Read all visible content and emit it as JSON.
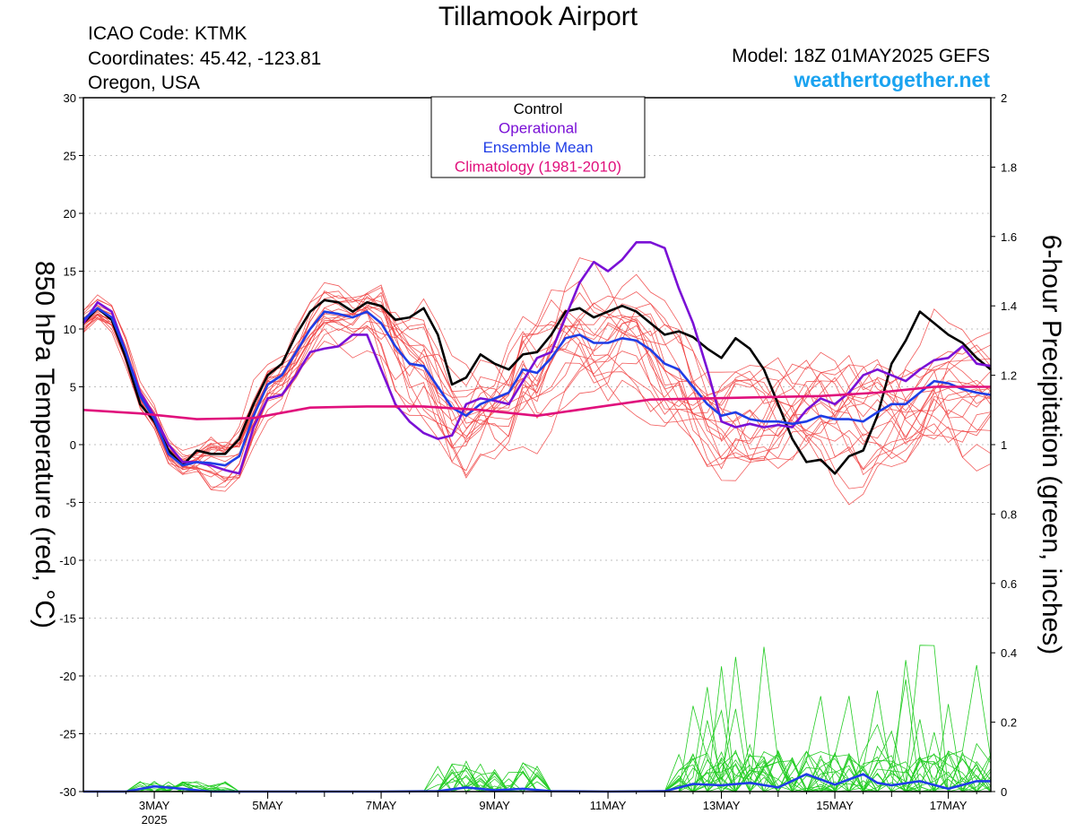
{
  "header": {
    "title": "Tillamook Airport",
    "icao": "ICAO Code: KTMK",
    "coordinates": "Coordinates: 45.42, -123.81",
    "region": "Oregon, USA",
    "model": "Model: 18Z 01MAY2025 GEFS",
    "site": "weathertogether.net"
  },
  "colors": {
    "control": "#000000",
    "operational": "#7a10d6",
    "ensemble_mean": "#1f3de6",
    "climatology": "#e0107c",
    "members_temp": "#f04040",
    "members_precip": "#22cc22",
    "grid": "#bfbfbf"
  },
  "chart_data": {
    "type": "line",
    "left_axis": {
      "label": "850 hPa Temperature (red, °C)",
      "range": [
        -30,
        30
      ],
      "ticks": [
        "30",
        "25",
        "20",
        "15",
        "10",
        "5",
        "0",
        "-5",
        "-10",
        "-15",
        "-20",
        "-25",
        "-30"
      ]
    },
    "right_axis": {
      "label": "6-hour Precipitation (green, inches)",
      "range": [
        0,
        2
      ],
      "ticks": [
        "2",
        "1.8",
        "1.6",
        "1.4",
        "1.2",
        "1",
        "0.8",
        "0.6",
        "0.4",
        "0.2",
        "0"
      ]
    },
    "x_axis": {
      "range_days": [
        1.75,
        17.75
      ],
      "ticks": [
        {
          "day": 3,
          "label": "3MAY",
          "sublabel": "2025"
        },
        {
          "day": 5,
          "label": "5MAY"
        },
        {
          "day": 7,
          "label": "7MAY"
        },
        {
          "day": 9,
          "label": "9MAY"
        },
        {
          "day": 11,
          "label": "11MAY"
        },
        {
          "day": 13,
          "label": "13MAY"
        },
        {
          "day": 15,
          "label": "15MAY"
        },
        {
          "day": 17,
          "label": "17MAY"
        }
      ]
    },
    "legend": {
      "position": "top-center",
      "entries": [
        {
          "label": "Control",
          "color": "#000000"
        },
        {
          "label": "Operational",
          "color": "#7a10d6"
        },
        {
          "label": "Ensemble Mean",
          "color": "#1f3de6"
        },
        {
          "label": "Climatology (1981-2010)",
          "color": "#e0107c"
        }
      ]
    },
    "grid": true,
    "series": [
      {
        "name": "Control",
        "axis": "temp",
        "color": "#000000",
        "width": 2.6,
        "x": [
          1.75,
          2.0,
          2.25,
          2.5,
          2.75,
          3.0,
          3.25,
          3.5,
          3.75,
          4.0,
          4.25,
          4.5,
          4.75,
          5.0,
          5.25,
          5.5,
          5.75,
          6.0,
          6.25,
          6.5,
          6.75,
          7.0,
          7.25,
          7.5,
          7.75,
          8.0,
          8.25,
          8.5,
          8.75,
          9.0,
          9.25,
          9.5,
          9.75,
          10.0,
          10.25,
          10.5,
          10.75,
          11.0,
          11.25,
          11.5,
          11.75,
          12.0,
          12.25,
          12.5,
          12.75,
          13.0,
          13.25,
          13.5,
          13.75,
          14.0,
          14.25,
          14.5,
          14.75,
          15.0,
          15.25,
          15.5,
          15.75,
          16.0,
          16.25,
          16.5,
          16.75,
          17.0,
          17.25,
          17.5,
          17.75
        ],
        "y": [
          10.5,
          11.8,
          10.8,
          7.5,
          3.5,
          2.0,
          -0.5,
          -1.8,
          -0.5,
          -0.8,
          -0.8,
          0.5,
          3.5,
          6.0,
          7.0,
          9.5,
          11.5,
          12.5,
          12.3,
          11.5,
          12.3,
          12.0,
          10.8,
          11.0,
          11.8,
          9.5,
          5.2,
          5.8,
          7.8,
          7.0,
          6.5,
          7.8,
          8.0,
          9.5,
          11.5,
          11.8,
          11.0,
          11.5,
          12.0,
          11.5,
          10.5,
          9.5,
          9.8,
          9.3,
          8.3,
          7.5,
          9.2,
          8.3,
          6.5,
          3.5,
          0.5,
          -1.5,
          -1.3,
          -2.5,
          -1.0,
          -0.5,
          2.5,
          7.0,
          9.0,
          11.5,
          10.5,
          9.5,
          8.8,
          7.5,
          6.5
        ]
      },
      {
        "name": "Operational",
        "axis": "temp",
        "color": "#7a10d6",
        "width": 2.6,
        "x": [
          1.75,
          2.0,
          2.25,
          2.5,
          2.75,
          3.0,
          3.25,
          3.5,
          3.75,
          4.0,
          4.25,
          4.5,
          4.75,
          5.0,
          5.25,
          5.5,
          5.75,
          6.0,
          6.25,
          6.5,
          6.75,
          7.0,
          7.25,
          7.5,
          7.75,
          8.0,
          8.25,
          8.5,
          8.75,
          9.0,
          9.25,
          9.5,
          9.75,
          10.0,
          10.25,
          10.5,
          10.75,
          11.0,
          11.25,
          11.5,
          11.75,
          12.0,
          12.25,
          12.5,
          12.75,
          13.0,
          13.25,
          13.5,
          13.75,
          14.0,
          14.25,
          14.5,
          14.75,
          15.0,
          15.25,
          15.5,
          15.75,
          16.0,
          16.25,
          16.5,
          16.75,
          17.0,
          17.25,
          17.5,
          17.75
        ],
        "y": [
          10.5,
          12.3,
          11.5,
          8.0,
          4.5,
          2.5,
          0.0,
          -1.5,
          -1.5,
          -1.8,
          -2.2,
          -2.5,
          1.5,
          4.0,
          4.3,
          6.0,
          8.0,
          8.3,
          8.5,
          9.5,
          9.5,
          6.5,
          3.5,
          2.0,
          1.0,
          0.5,
          0.8,
          3.5,
          4.0,
          3.8,
          3.5,
          5.5,
          7.5,
          8.0,
          11.0,
          14.0,
          15.8,
          15.0,
          16.0,
          17.5,
          17.5,
          17.0,
          13.5,
          10.5,
          6.5,
          2.0,
          1.5,
          1.8,
          1.5,
          1.7,
          1.5,
          3.0,
          4.0,
          3.5,
          4.5,
          6.0,
          6.5,
          6.0,
          5.5,
          6.5,
          7.3,
          7.5,
          8.5,
          7.0,
          6.8
        ]
      },
      {
        "name": "Ensemble Mean",
        "axis": "temp",
        "color": "#1f3de6",
        "width": 2.6,
        "x": [
          1.75,
          2.0,
          2.25,
          2.5,
          2.75,
          3.0,
          3.25,
          3.5,
          3.75,
          4.0,
          4.25,
          4.5,
          4.75,
          5.0,
          5.25,
          5.5,
          5.75,
          6.0,
          6.25,
          6.5,
          6.75,
          7.0,
          7.25,
          7.5,
          7.75,
          8.0,
          8.25,
          8.5,
          8.75,
          9.0,
          9.25,
          9.5,
          9.75,
          10.0,
          10.25,
          10.5,
          10.75,
          11.0,
          11.25,
          11.5,
          11.75,
          12.0,
          12.25,
          12.5,
          12.75,
          13.0,
          13.25,
          13.5,
          13.75,
          14.0,
          14.25,
          14.5,
          14.75,
          15.0,
          15.25,
          15.5,
          15.75,
          16.0,
          16.25,
          16.5,
          16.75,
          17.0,
          17.25,
          17.5,
          17.75
        ],
        "y": [
          10.8,
          11.8,
          11.0,
          8.0,
          4.2,
          2.2,
          -0.8,
          -1.8,
          -1.5,
          -1.6,
          -1.8,
          -1.0,
          2.5,
          5.2,
          6.0,
          8.0,
          10.0,
          11.5,
          11.3,
          11.0,
          11.5,
          10.5,
          8.5,
          7.0,
          6.8,
          5.0,
          3.2,
          2.5,
          3.5,
          4.0,
          4.5,
          6.5,
          6.2,
          7.5,
          9.2,
          9.5,
          8.8,
          8.8,
          9.2,
          9.0,
          8.2,
          7.0,
          6.5,
          5.0,
          3.5,
          2.5,
          2.8,
          2.2,
          2.0,
          2.0,
          1.8,
          2.0,
          2.5,
          2.2,
          2.2,
          2.0,
          2.8,
          3.5,
          3.5,
          4.5,
          5.5,
          5.3,
          4.8,
          4.5,
          4.3
        ]
      },
      {
        "name": "Climatology (1981-2010)",
        "axis": "temp",
        "color": "#e0107c",
        "width": 2.6,
        "x": [
          1.75,
          2.75,
          3.75,
          4.75,
          5.75,
          6.75,
          7.75,
          8.75,
          9.75,
          10.75,
          11.75,
          12.75,
          13.75,
          14.75,
          15.75,
          16.75,
          17.75
        ],
        "y": [
          3.0,
          2.7,
          2.2,
          2.3,
          3.2,
          3.3,
          3.3,
          3.0,
          2.5,
          3.2,
          3.9,
          4.0,
          4.1,
          4.2,
          4.5,
          5.0,
          5.0
        ]
      },
      {
        "name": "Ensemble Mean Precipitation",
        "axis": "precip",
        "color": "#1f3de6",
        "width": 2.6,
        "x": [
          1.75,
          2.5,
          3.0,
          3.5,
          4.0,
          5.0,
          6.0,
          7.0,
          8.0,
          8.5,
          9.0,
          9.5,
          10.0,
          11.0,
          12.0,
          12.5,
          13.0,
          13.5,
          14.0,
          14.5,
          15.0,
          15.5,
          15.75,
          16.0,
          16.5,
          17.0,
          17.5,
          17.75
        ],
        "y": [
          0,
          0,
          0.015,
          0.008,
          0,
          0,
          0,
          0,
          0.001,
          0.012,
          0.004,
          0.008,
          0.001,
          0,
          0.001,
          0.022,
          0.018,
          0.025,
          0.012,
          0.05,
          0.02,
          0.05,
          0.025,
          0.018,
          0.03,
          0.008,
          0.03,
          0.03
        ]
      }
    ]
  }
}
